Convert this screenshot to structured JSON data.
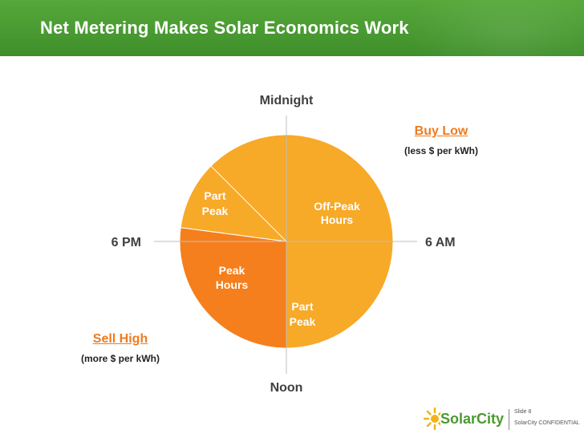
{
  "header": {
    "title": "Net Metering Makes Solar Economics Work"
  },
  "axis_labels": {
    "top": "Midnight",
    "right": "6 AM",
    "bottom": "Noon",
    "left": "6 PM"
  },
  "slice_labels": {
    "off_peak": [
      "Off-Peak",
      "Hours"
    ],
    "part_peak_evening": [
      "Part",
      "Peak"
    ],
    "peak": [
      "Peak",
      "Hours"
    ],
    "part_peak_midday": [
      "Part",
      "Peak"
    ]
  },
  "buy_low": {
    "title": "Buy Low",
    "subtitle": "(less $ per kWh)"
  },
  "sell_high": {
    "title": "Sell High",
    "subtitle": "(more $ per kWh)"
  },
  "footer": {
    "logo": "SolarCity",
    "slide": "Slide 8",
    "confidential": "SolarCity CONFIDENTIAL"
  },
  "colors": {
    "off_peak": "#6a8fb6",
    "part_peak": "#f7a928",
    "peak": "#f47f1c",
    "header": "#4b9c32"
  },
  "chart_data": {
    "type": "pie",
    "start": "Midnight",
    "direction": "clockwise",
    "slices": [
      {
        "label": "Off-Peak Hours",
        "start_hour": 21.0,
        "end_hour": 13.5,
        "color": "#6a8fb6"
      },
      {
        "label": "Part Peak",
        "start_hour": 13.5,
        "end_hour": 12.0,
        "color": "#f7a928"
      },
      {
        "label": "Peak Hours",
        "start_hour": 12.0,
        "end_hour": 18.5,
        "color": "#f47f1c"
      },
      {
        "label": "Part Peak",
        "start_hour": 18.5,
        "end_hour": 21.0,
        "color": "#f7a928"
      }
    ]
  }
}
